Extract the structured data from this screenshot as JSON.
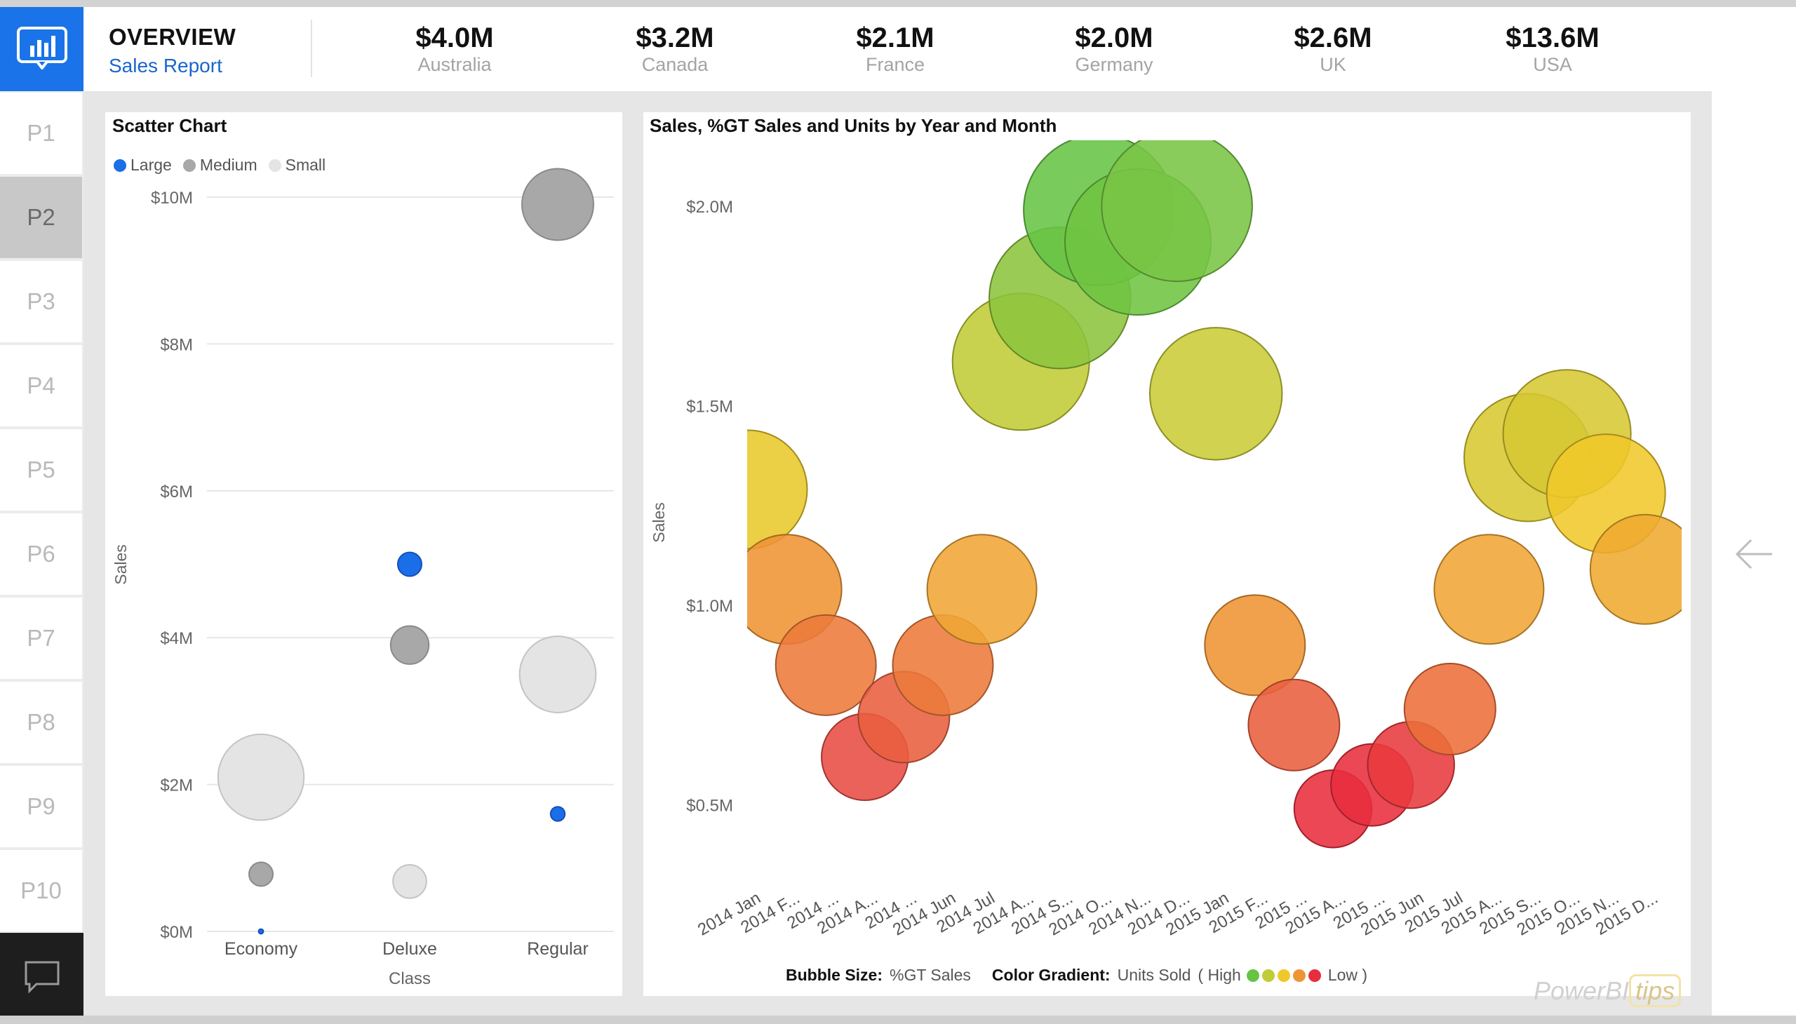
{
  "header": {
    "title": "OVERVIEW",
    "subtitle": "Sales Report",
    "kpis": [
      {
        "value": "$4.0M",
        "label": "Australia"
      },
      {
        "value": "$3.2M",
        "label": "Canada"
      },
      {
        "value": "$2.1M",
        "label": "France"
      },
      {
        "value": "$2.0M",
        "label": "Germany"
      },
      {
        "value": "$2.6M",
        "label": "UK"
      },
      {
        "value": "$13.6M",
        "label": "USA"
      }
    ]
  },
  "sidebar": {
    "pages": [
      "P1",
      "P2",
      "P3",
      "P4",
      "P5",
      "P6",
      "P7",
      "P8",
      "P9",
      "P10"
    ],
    "active": "P2"
  },
  "icons": {
    "logo": "bar-chart-icon",
    "chat": "chat-bubble-icon",
    "nav": "arrow-left-icon"
  },
  "colors": {
    "accent": "#1a73e8",
    "large": "#1a6ee8",
    "medium": "#a8a8a8",
    "small": "#e4e4e4"
  },
  "watermark": {
    "text": "PowerBI",
    "tips": "tips"
  },
  "chart_data": [
    {
      "type": "scatter",
      "title": "Scatter Chart",
      "xlabel": "Class",
      "ylabel": "Sales",
      "categories": [
        "Economy",
        "Deluxe",
        "Regular"
      ],
      "ylim": [
        0,
        10
      ],
      "yticks": [
        "$0M",
        "$2M",
        "$4M",
        "$6M",
        "$8M",
        "$10M"
      ],
      "legend": {
        "position": "top-left",
        "items": [
          "Large",
          "Medium",
          "Small"
        ]
      },
      "series": [
        {
          "name": "Large",
          "color": "#1a6ee8",
          "points": [
            {
              "x": "Economy",
              "y": 0.0,
              "size": 1
            },
            {
              "x": "Deluxe",
              "y": 5.0,
              "size": 5
            },
            {
              "x": "Regular",
              "y": 1.6,
              "size": 3
            }
          ]
        },
        {
          "name": "Medium",
          "color": "#a8a8a8",
          "points": [
            {
              "x": "Economy",
              "y": 0.78,
              "size": 5
            },
            {
              "x": "Deluxe",
              "y": 3.9,
              "size": 8
            },
            {
              "x": "Regular",
              "y": 9.9,
              "size": 15
            }
          ]
        },
        {
          "name": "Small",
          "color": "#e4e4e4",
          "points": [
            {
              "x": "Economy",
              "y": 2.1,
              "size": 18
            },
            {
              "x": "Deluxe",
              "y": 0.68,
              "size": 7
            },
            {
              "x": "Regular",
              "y": 3.5,
              "size": 16
            }
          ]
        }
      ]
    },
    {
      "type": "scatter",
      "title": "Sales, %GT Sales and Units by Year and Month",
      "ylabel": "Sales",
      "yticks": [
        "$0.5M",
        "$1.0M",
        "$1.5M",
        "$2.0M"
      ],
      "ylim": [
        0.32,
        2.2
      ],
      "x": [
        "2014 Jan",
        "2014 Feb",
        "2014 Mar",
        "2014 Apr",
        "2014 May",
        "2014 Jun",
        "2014 Jul",
        "2014 Aug",
        "2014 Sep",
        "2014 Oct",
        "2014 Nov",
        "2014 Dec",
        "2015 Jan",
        "2015 Feb",
        "2015 Mar",
        "2015 Apr",
        "2015 May",
        "2015 Jun",
        "2015 Jul",
        "2015 Aug",
        "2015 Sep",
        "2015 Oct",
        "2015 Nov",
        "2015 Dec"
      ],
      "xtick_labels": [
        "2014 Jan",
        "2014 F...",
        "2014 ...",
        "2014 A...",
        "2014 ...",
        "2014 Jun",
        "2014 Jul",
        "2014 A...",
        "2014 S...",
        "2014 O...",
        "2014 N...",
        "2014 D...",
        "2015 Jan",
        "2015 F...",
        "2015 ...",
        "2015 A...",
        "2015 ...",
        "2015 Jun",
        "2015 Jul",
        "2015 A...",
        "2015 S...",
        "2015 O...",
        "2015 N...",
        "2015 D..."
      ],
      "points": [
        {
          "x": "2014 Jan",
          "y": 1.29,
          "size": 1.3,
          "color": "#e8c82a"
        },
        {
          "x": "2014 Feb",
          "y": 1.04,
          "size": 1.2,
          "color": "#ef9433"
        },
        {
          "x": "2014 Mar",
          "y": 0.85,
          "size": 1.1,
          "color": "#ec7a3a"
        },
        {
          "x": "2014 Apr",
          "y": 0.62,
          "size": 0.95,
          "color": "#e84c44"
        },
        {
          "x": "2014 May",
          "y": 0.72,
          "size": 1.0,
          "color": "#e95e3f"
        },
        {
          "x": "2014 Jun",
          "y": 0.85,
          "size": 1.1,
          "color": "#ec7a3a"
        },
        {
          "x": "2014 Jul",
          "y": 1.04,
          "size": 1.2,
          "color": "#f0a636"
        },
        {
          "x": "2014 Aug",
          "y": 1.61,
          "size": 1.5,
          "color": "#c2cc35"
        },
        {
          "x": "2014 Sep",
          "y": 1.77,
          "size": 1.55,
          "color": "#8cc43e"
        },
        {
          "x": "2014 Oct",
          "y": 1.99,
          "size": 1.65,
          "color": "#66c445"
        },
        {
          "x": "2014 Nov",
          "y": 1.91,
          "size": 1.6,
          "color": "#6fc442"
        },
        {
          "x": "2014 Dec",
          "y": 2.0,
          "size": 1.65,
          "color": "#79c545"
        },
        {
          "x": "2015 Jan",
          "y": 1.53,
          "size": 1.45,
          "color": "#c9cc38"
        },
        {
          "x": "2015 Feb",
          "y": 0.9,
          "size": 1.1,
          "color": "#ef9433"
        },
        {
          "x": "2015 Mar",
          "y": 0.7,
          "size": 1.0,
          "color": "#e95e3f"
        },
        {
          "x": "2015 Apr",
          "y": 0.49,
          "size": 0.85,
          "color": "#e82e3e"
        },
        {
          "x": "2015 May",
          "y": 0.55,
          "size": 0.9,
          "color": "#e82e3e"
        },
        {
          "x": "2015 Jun",
          "y": 0.6,
          "size": 0.95,
          "color": "#e83a3e"
        },
        {
          "x": "2015 Jul",
          "y": 0.74,
          "size": 1.0,
          "color": "#ec6e3a"
        },
        {
          "x": "2015 Aug",
          "y": 1.04,
          "size": 1.2,
          "color": "#f0a636"
        },
        {
          "x": "2015 Sep",
          "y": 1.37,
          "size": 1.4,
          "color": "#d8c830"
        },
        {
          "x": "2015 Oct",
          "y": 1.43,
          "size": 1.4,
          "color": "#d6c832"
        },
        {
          "x": "2015 Nov",
          "y": 1.28,
          "size": 1.3,
          "color": "#f0c82a"
        },
        {
          "x": "2015 Dec",
          "y": 1.09,
          "size": 1.2,
          "color": "#efaa30"
        }
      ],
      "legend": {
        "bubble_size_label": "Bubble Size:",
        "bubble_size_value": "%GT Sales",
        "gradient_label": "Color Gradient:",
        "gradient_value": "Units Sold",
        "high": "( High",
        "low": "Low )",
        "gradient_colors": [
          "#66c445",
          "#c2cc35",
          "#f0c82a",
          "#ef9433",
          "#e82e3e"
        ]
      }
    }
  ]
}
